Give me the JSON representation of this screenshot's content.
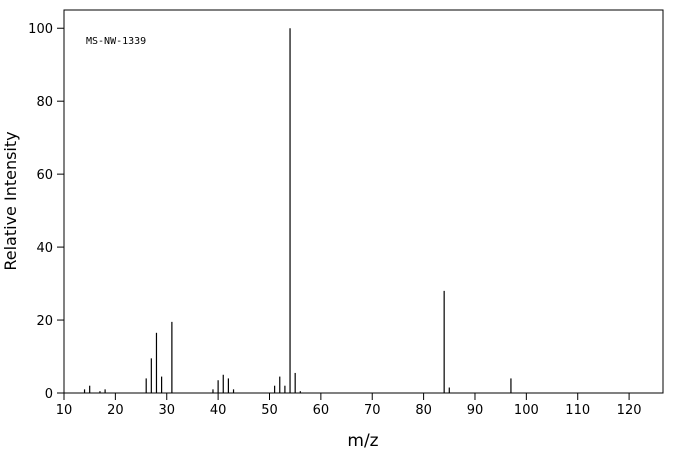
{
  "chart_data": {
    "type": "bar",
    "annotation": "MS-NW-1339",
    "x_label": "m/z",
    "y_label": "Relative Intensity",
    "x": [
      14,
      15,
      17,
      18,
      26,
      27,
      28,
      29,
      31,
      39,
      40,
      41,
      42,
      43,
      51,
      52,
      53,
      54,
      55,
      56,
      84,
      85,
      97
    ],
    "values": [
      1,
      2,
      0.5,
      1,
      4,
      9.5,
      16.5,
      4.5,
      19.5,
      1,
      3.5,
      5,
      4,
      1,
      2,
      4.5,
      2,
      100,
      5.5,
      0.5,
      28,
      1.5,
      4
    ],
    "color": "#000000",
    "xlim": [
      10,
      126.6
    ],
    "ylim": [
      0,
      105
    ],
    "xticks": [
      10,
      20,
      30,
      40,
      50,
      60,
      70,
      80,
      90,
      100,
      110,
      120
    ],
    "yticks": [
      0,
      20,
      40,
      60,
      80,
      100
    ]
  }
}
